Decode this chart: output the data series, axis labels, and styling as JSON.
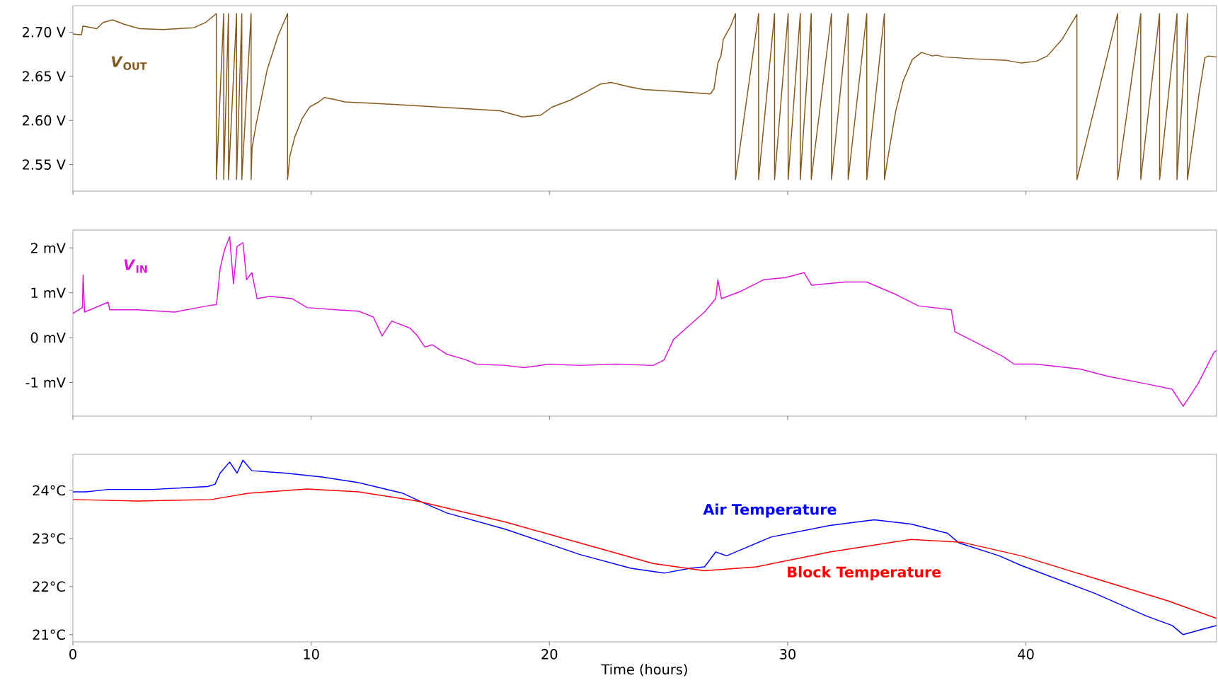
{
  "chart_data": [
    {
      "type": "line",
      "xlim": [
        0,
        48
      ],
      "ylim": [
        2.52,
        2.73
      ],
      "xticks": [
        0,
        10,
        20,
        30,
        40
      ],
      "tick_labels": "y",
      "yticks": [
        {
          "value": 2.55,
          "label": "2.55 V"
        },
        {
          "value": 2.6,
          "label": "2.60 V"
        },
        {
          "value": 2.65,
          "label": "2.65 V"
        },
        {
          "value": 2.7,
          "label": "2.70 V"
        }
      ],
      "series": [
        {
          "name": "*V*$_{OUT}$",
          "color": "#83591c",
          "x": [
            0,
            0.36,
            0.42,
            1.0,
            1.27,
            1.66,
            2.15,
            2.8,
            3.78,
            5.08,
            5.57,
            6.02,
            6.02,
            6.33,
            6.33,
            6.53,
            6.53,
            6.87,
            6.87,
            7.09,
            7.09,
            7.48,
            7.48,
            7.52,
            7.68,
            8.15,
            8.61,
            9.01,
            9.01,
            9.11,
            9.31,
            9.62,
            9.93,
            10.32,
            10.55,
            10.94,
            11.41,
            13.58,
            16.69,
            17.93,
            18.86,
            19.64,
            20.1,
            20.88,
            21.65,
            22.12,
            22.59,
            23.36,
            23.95,
            25.21,
            26.76,
            26.91,
            27.07,
            27.2,
            27.3,
            27.61,
            27.81,
            27.81,
            28.78,
            28.78,
            29.45,
            29.45,
            30.02,
            30.02,
            30.53,
            30.53,
            30.99,
            30.99,
            31.84,
            31.84,
            32.54,
            32.54,
            33.32,
            33.32,
            34.06,
            34.06,
            34.22,
            34.53,
            34.84,
            35.23,
            35.62,
            36.08,
            36.24,
            36.55,
            37.64,
            39.19,
            39.81,
            40.43,
            40.9,
            41.52,
            42.14,
            42.14,
            43.85,
            43.85,
            44.82,
            44.82,
            45.61,
            45.61,
            46.34,
            46.34,
            46.78,
            46.78,
            46.96,
            47.27,
            47.51,
            47.66,
            48.0
          ],
          "values": [
            2.698,
            2.697,
            2.707,
            2.704,
            2.711,
            2.714,
            2.709,
            2.704,
            2.703,
            2.705,
            2.711,
            2.721,
            2.533,
            2.721,
            2.533,
            2.721,
            2.533,
            2.721,
            2.533,
            2.721,
            2.533,
            2.721,
            2.533,
            2.569,
            2.594,
            2.657,
            2.696,
            2.721,
            2.533,
            2.56,
            2.581,
            2.602,
            2.615,
            2.621,
            2.626,
            2.624,
            2.621,
            2.618,
            2.613,
            2.611,
            2.604,
            2.606,
            2.615,
            2.623,
            2.634,
            2.641,
            2.643,
            2.638,
            2.635,
            2.633,
            2.63,
            2.636,
            2.665,
            2.673,
            2.692,
            2.707,
            2.721,
            2.533,
            2.721,
            2.533,
            2.721,
            2.533,
            2.721,
            2.533,
            2.721,
            2.533,
            2.721,
            2.533,
            2.721,
            2.533,
            2.721,
            2.533,
            2.721,
            2.533,
            2.721,
            2.533,
            2.56,
            2.61,
            2.644,
            2.669,
            2.677,
            2.673,
            2.674,
            2.672,
            2.67,
            2.668,
            2.665,
            2.667,
            2.673,
            2.692,
            2.72,
            2.533,
            2.721,
            2.533,
            2.721,
            2.533,
            2.721,
            2.533,
            2.721,
            2.533,
            2.721,
            2.533,
            2.569,
            2.631,
            2.671,
            2.673,
            2.672
          ]
        }
      ]
    },
    {
      "type": "line",
      "xlim": [
        0,
        48
      ],
      "ylim": [
        -1.75,
        2.4
      ],
      "xticks": [
        0,
        10,
        20,
        30,
        40
      ],
      "tick_labels": "y",
      "yticks": [
        {
          "value": -1,
          "label": "-1 mV"
        },
        {
          "value": 0,
          "label": "0 mV"
        },
        {
          "value": 1,
          "label": "1 mV"
        },
        {
          "value": 2,
          "label": "2 mV"
        }
      ],
      "series": [
        {
          "name": "*V*$_{IN}$",
          "color": "#d916d9",
          "x": [
            0,
            0.4,
            0.43,
            0.49,
            1.48,
            1.55,
            2.72,
            4.26,
            5.66,
            6.03,
            6.18,
            6.36,
            6.58,
            6.74,
            6.89,
            7.14,
            7.29,
            7.51,
            7.73,
            8.28,
            9.2,
            9.83,
            11.06,
            11.99,
            12.61,
            12.98,
            13.38,
            14.15,
            14.46,
            14.77,
            15.08,
            15.7,
            16.47,
            16.93,
            18.17,
            18.94,
            20.02,
            21.26,
            22.8,
            24.35,
            24.81,
            25.21,
            25.74,
            26.51,
            26.98,
            27.07,
            27.22,
            28.06,
            28.99,
            29.91,
            30.69,
            31.0,
            32.39,
            33.32,
            34.55,
            35.48,
            36.87,
            37.02,
            37.95,
            39.03,
            39.5,
            40.42,
            42.27,
            43.51,
            45.05,
            46.14,
            46.6,
            47.22,
            47.9,
            48.0
          ],
          "values": [
            0.54,
            0.67,
            1.4,
            0.57,
            0.79,
            0.62,
            0.62,
            0.57,
            0.71,
            0.74,
            1.54,
            1.95,
            2.25,
            1.2,
            2.03,
            2.12,
            1.29,
            1.45,
            0.87,
            0.92,
            0.87,
            0.67,
            0.62,
            0.59,
            0.46,
            0.04,
            0.37,
            0.21,
            0.04,
            -0.21,
            -0.16,
            -0.37,
            -0.49,
            -0.59,
            -0.62,
            -0.67,
            -0.59,
            -0.62,
            -0.59,
            -0.62,
            -0.5,
            -0.04,
            0.21,
            0.57,
            0.87,
            1.29,
            0.87,
            1.04,
            1.29,
            1.34,
            1.45,
            1.17,
            1.24,
            1.24,
            0.96,
            0.71,
            0.62,
            0.13,
            -0.12,
            -0.42,
            -0.59,
            -0.59,
            -0.7,
            -0.87,
            -1.03,
            -1.15,
            -1.53,
            -1.03,
            -0.32,
            -0.29
          ]
        }
      ]
    },
    {
      "type": "line",
      "xlim": [
        0,
        48
      ],
      "ylim": [
        20.85,
        24.75
      ],
      "xticks": [
        0,
        10,
        20,
        30,
        40
      ],
      "xlabel": "Time (hours)",
      "yticks": [
        {
          "value": 21,
          "label": "21°C"
        },
        {
          "value": 22,
          "label": "22°C"
        },
        {
          "value": 23,
          "label": "23°C"
        },
        {
          "value": 24,
          "label": "24°C"
        }
      ],
      "series": [
        {
          "name": "Air Temperature",
          "color": "#0000ff",
          "x": [
            0,
            0.56,
            1.48,
            3.34,
            5.66,
            5.97,
            6.18,
            6.58,
            6.89,
            7.14,
            7.51,
            8.9,
            10.45,
            12.0,
            12.92,
            13.85,
            14.77,
            15.7,
            18.17,
            21.26,
            23.42,
            24.81,
            25.9,
            26.51,
            26.98,
            27.44,
            29.3,
            31.77,
            33.63,
            35.17,
            36.71,
            37.18,
            38.88,
            39.8,
            42.89,
            45.05,
            46.14,
            46.6,
            47.53,
            48.0
          ],
          "values": [
            23.97,
            23.97,
            24.02,
            24.02,
            24.08,
            24.13,
            24.36,
            24.59,
            24.36,
            24.63,
            24.41,
            24.36,
            24.28,
            24.16,
            24.05,
            23.94,
            23.73,
            23.53,
            23.19,
            22.67,
            22.38,
            22.28,
            22.38,
            22.41,
            22.72,
            22.64,
            23.03,
            23.27,
            23.39,
            23.3,
            23.11,
            22.91,
            22.64,
            22.44,
            21.86,
            21.39,
            21.19,
            21.0,
            21.13,
            21.19
          ]
        },
        {
          "name": "Block Temperature",
          "color": "#ff0000",
          "x": [
            0,
            2.72,
            5.81,
            7.36,
            9.83,
            11.99,
            14.46,
            18.17,
            21.26,
            24.35,
            26.51,
            28.68,
            31.77,
            35.17,
            37.33,
            39.8,
            42.89,
            45.98,
            48.0
          ],
          "values": [
            23.81,
            23.78,
            23.81,
            23.94,
            24.03,
            23.97,
            23.78,
            23.34,
            22.91,
            22.48,
            22.33,
            22.41,
            22.72,
            22.98,
            22.92,
            22.64,
            22.17,
            21.7,
            21.34
          ]
        }
      ]
    }
  ]
}
